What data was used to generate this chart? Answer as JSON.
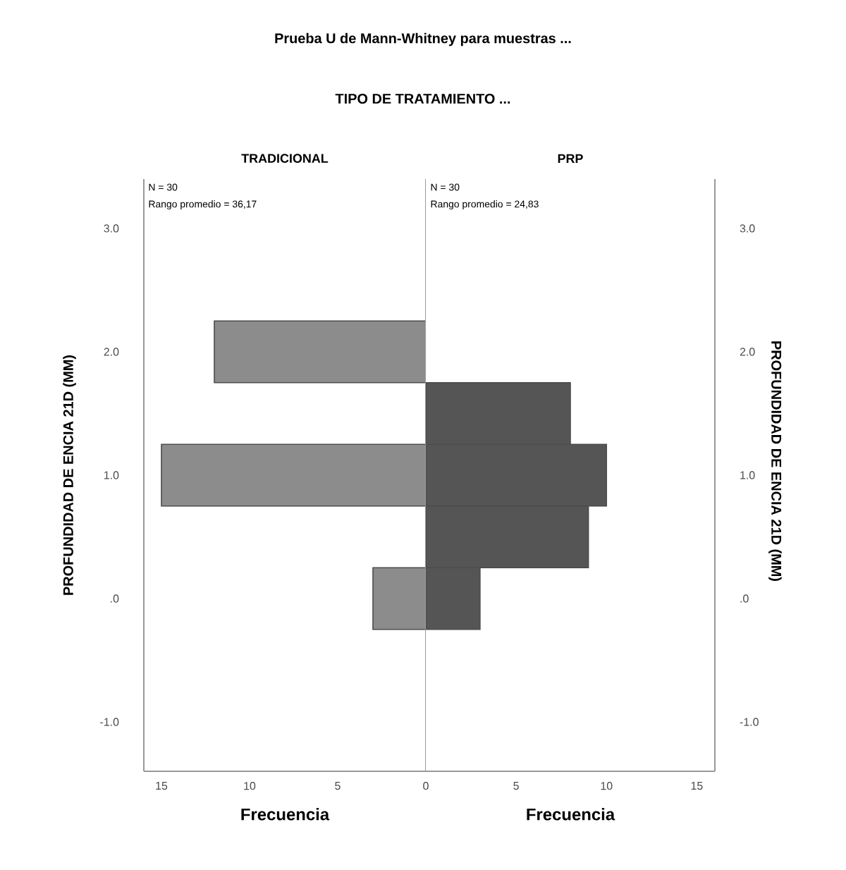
{
  "chart_data": [
    {
      "type": "histogram",
      "orientation": "horizontal",
      "title": "TRADICIONAL",
      "xlabel": "Frecuencia",
      "ylabel": "PROFUNDIDAD DE ENCIA 21D (MM)",
      "annotations": [
        "Prueba U de Mann-Whitney para muestras ...",
        "TIPO DE TRATAMIENTO ...",
        "N = 30",
        "Rango promedio = 36,17"
      ],
      "bins": [
        -0.25,
        0.25,
        0.75,
        1.25,
        1.75,
        2.25
      ],
      "values": [
        3,
        0,
        15,
        0,
        12
      ],
      "color": "#8c8c8c",
      "xlim": [
        16,
        0
      ],
      "xticks": [
        15,
        10,
        5,
        0
      ],
      "ylim": [
        -1.4,
        3.4
      ],
      "yticks": [
        {
          "value": 3,
          "label": "3.0"
        },
        {
          "value": 2,
          "label": "2.0"
        },
        {
          "value": 1,
          "label": "1.0"
        },
        {
          "value": 0,
          "label": ".0"
        },
        {
          "value": -1,
          "label": "-1.0"
        }
      ]
    },
    {
      "type": "histogram",
      "orientation": "horizontal",
      "title": "PRP",
      "xlabel": "Frecuencia",
      "ylabel": "PROFUNDIDAD DE ENCIA 21D (MM)",
      "annotations": [
        "N = 30",
        "Rango promedio = 24,83"
      ],
      "bins": [
        -0.25,
        0.25,
        0.75,
        1.25,
        1.75,
        2.25
      ],
      "values": [
        3,
        9,
        10,
        8,
        0
      ],
      "color": "#555555",
      "xlim": [
        0,
        16
      ],
      "xticks": [
        5,
        10,
        15
      ],
      "ylim": [
        -1.4,
        3.4
      ],
      "yticks": [
        {
          "value": 3,
          "label": "3.0"
        },
        {
          "value": 2,
          "label": "2.0"
        },
        {
          "value": 1,
          "label": "1.0"
        },
        {
          "value": 0,
          "label": ".0"
        },
        {
          "value": -1,
          "label": "-1.0"
        }
      ]
    }
  ]
}
